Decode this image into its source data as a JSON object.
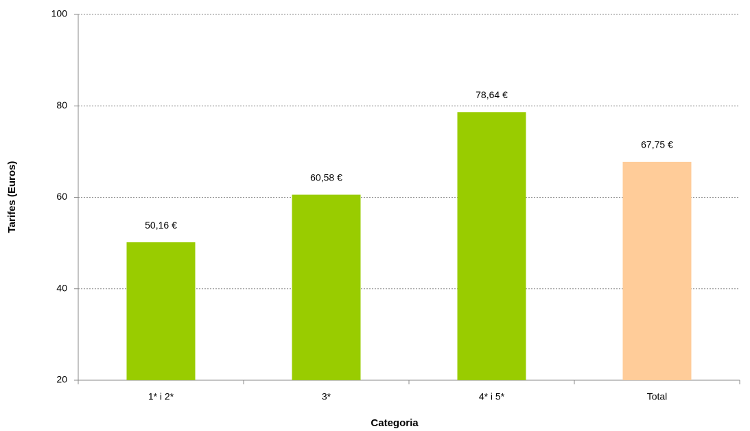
{
  "chart_data": {
    "type": "bar",
    "x_label": "Categoria",
    "y_label": "Tarifes (Euros)",
    "categories": [
      "1* i 2*",
      "3*",
      "4* i 5*",
      "Total"
    ],
    "values": [
      50.16,
      60.58,
      78.64,
      67.75
    ],
    "value_labels": [
      "50,16 €",
      "60,58 €",
      "78,64 €",
      "67,75 €"
    ],
    "colors": [
      "#99cc00",
      "#99cc00",
      "#99cc00",
      "#ffcc99"
    ],
    "ylim": [
      20,
      100
    ],
    "yticks": [
      20,
      40,
      60,
      80,
      100
    ],
    "grid": true
  }
}
